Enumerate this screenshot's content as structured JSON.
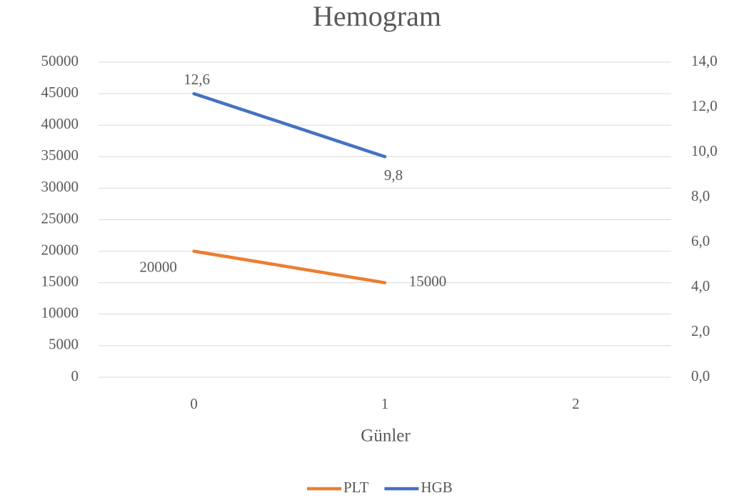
{
  "chart_data": {
    "type": "line",
    "title": "Hemogram",
    "x_label": "Günler",
    "categories": [
      "0",
      "1",
      "2"
    ],
    "series": [
      {
        "name": "PLT",
        "color": "#ed7d31",
        "values": [
          20000,
          15000,
          null
        ]
      },
      {
        "name": "HGB",
        "color": "#4472c4",
        "axis": "y2",
        "values": [
          12.6,
          9.8,
          null
        ],
        "value_labels": [
          "12,6",
          "9,8",
          null
        ]
      }
    ],
    "ylim": [
      0,
      50000
    ],
    "yticks": [
      0,
      5000,
      10000,
      15000,
      20000,
      25000,
      30000,
      35000,
      40000,
      45000,
      50000
    ],
    "y2lim": [
      0,
      14
    ],
    "y2ticks": [
      {
        "value": 0,
        "label": "0,0"
      },
      {
        "value": 2,
        "label": "2,0"
      },
      {
        "value": 4,
        "label": "4,0"
      },
      {
        "value": 6,
        "label": "6,0"
      },
      {
        "value": 8,
        "label": "8,0"
      },
      {
        "value": 10,
        "label": "10,0"
      },
      {
        "value": 12,
        "label": "12,0"
      },
      {
        "value": 14,
        "label": "14,0"
      }
    ],
    "grid": true,
    "legend": "bottom"
  }
}
